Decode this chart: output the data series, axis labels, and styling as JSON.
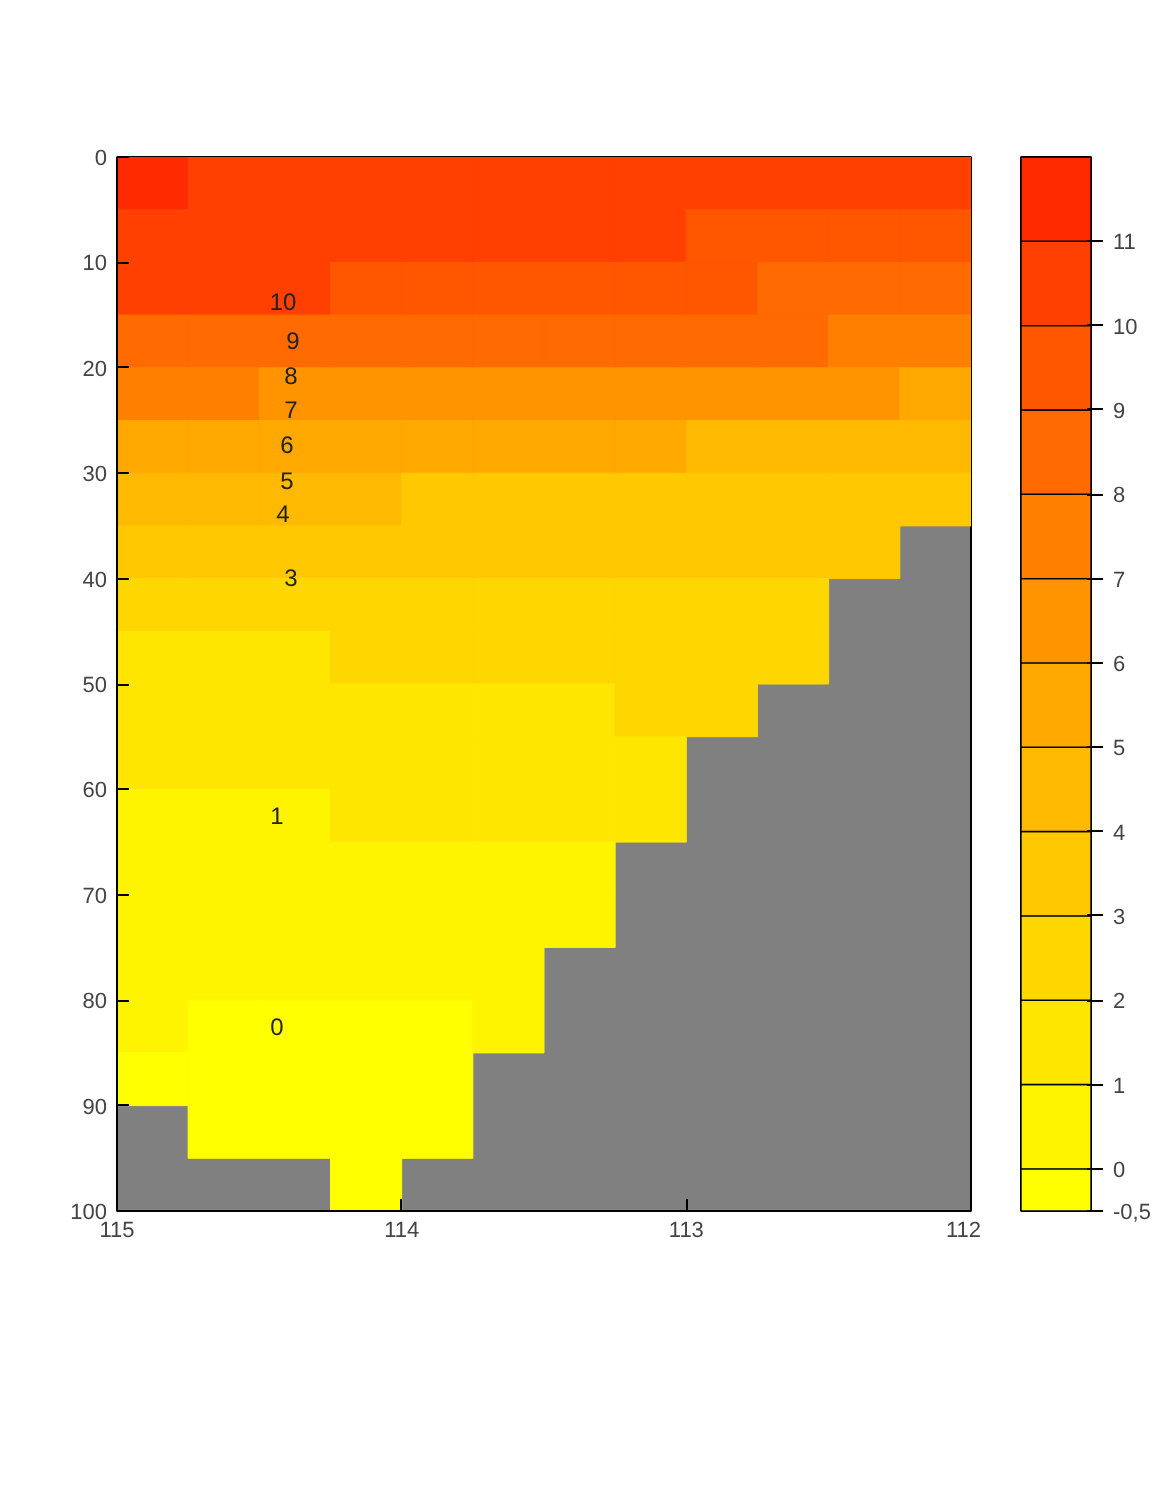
{
  "chart_data": {
    "type": "heatmap",
    "x": [
      114.875,
      114.625,
      114.375,
      114.125,
      113.875,
      113.625,
      113.375,
      113.125,
      112.875,
      112.625,
      112.375,
      112.125
    ],
    "y": [
      2.5,
      7.5,
      12.5,
      17.5,
      22.5,
      27.5,
      32.5,
      37.5,
      42.5,
      47.5,
      52.5,
      57.5,
      62.5,
      67.5,
      72.5,
      77.5,
      82.5,
      87.5,
      92.5,
      97.5
    ],
    "cells": [
      [
        11.5,
        10.5,
        10.5,
        10.5,
        10.5,
        10.5,
        10.5,
        10.5,
        10.5,
        10.5,
        10.5,
        10.5
      ],
      [
        10.5,
        10.5,
        10.5,
        10.5,
        10.5,
        10.5,
        10.5,
        10.5,
        9.5,
        9.5,
        9.5,
        9.5
      ],
      [
        10.5,
        10.5,
        10.5,
        9.5,
        9.5,
        9.5,
        9.5,
        9.5,
        9.5,
        8.5,
        8.5,
        8.5
      ],
      [
        8.5,
        8.5,
        8.5,
        8.5,
        8.5,
        8.5,
        8.5,
        8.5,
        8.5,
        8.5,
        7.5,
        7.5
      ],
      [
        7.5,
        7.5,
        6.5,
        6.5,
        6.5,
        6.5,
        6.5,
        6.5,
        6.5,
        6.5,
        6.5,
        5.5
      ],
      [
        5.5,
        5.5,
        5.5,
        5.5,
        5.5,
        5.5,
        5.5,
        5.5,
        4.5,
        4.5,
        4.5,
        4.5
      ],
      [
        4.5,
        4.5,
        4.5,
        4.5,
        3.5,
        3.5,
        3.5,
        3.5,
        3.5,
        3.5,
        3.5,
        3.5
      ],
      [
        3.5,
        3.5,
        3.5,
        3.5,
        3.5,
        3.5,
        3.5,
        3.5,
        3.5,
        3.5,
        3.5,
        null
      ],
      [
        2.5,
        2.5,
        2.5,
        2.5,
        2.5,
        2.5,
        2.5,
        2.5,
        2.5,
        2.5,
        null,
        null
      ],
      [
        1.5,
        1.5,
        1.5,
        2.5,
        2.5,
        2.5,
        2.5,
        2.5,
        2.5,
        2.5,
        null,
        null
      ],
      [
        1.5,
        1.5,
        1.5,
        1.5,
        1.5,
        1.5,
        1.5,
        2.5,
        2.5,
        null,
        null,
        null
      ],
      [
        1.5,
        1.5,
        1.5,
        1.5,
        1.5,
        1.5,
        1.5,
        1.5,
        null,
        null,
        null,
        null
      ],
      [
        0.5,
        0.5,
        0.5,
        1.5,
        1.5,
        1.5,
        1.5,
        1.5,
        null,
        null,
        null,
        null
      ],
      [
        0.5,
        0.5,
        0.5,
        0.5,
        0.5,
        0.5,
        0.5,
        null,
        null,
        null,
        null,
        null
      ],
      [
        0.5,
        0.5,
        0.5,
        0.5,
        0.5,
        0.5,
        0.5,
        null,
        null,
        null,
        null,
        null
      ],
      [
        0.5,
        0.5,
        0.5,
        0.5,
        0.5,
        0.5,
        null,
        null,
        null,
        null,
        null,
        null
      ],
      [
        0.5,
        -0.25,
        -0.25,
        -0.25,
        -0.25,
        0.5,
        null,
        null,
        null,
        null,
        null,
        null
      ],
      [
        -0.25,
        -0.25,
        -0.25,
        -0.25,
        -0.25,
        null,
        null,
        null,
        null,
        null,
        null,
        null
      ],
      [
        null,
        -0.25,
        -0.25,
        -0.25,
        -0.25,
        null,
        null,
        null,
        null,
        null,
        null,
        null
      ],
      [
        null,
        null,
        null,
        -0.25,
        null,
        null,
        null,
        null,
        null,
        null,
        null,
        null
      ]
    ],
    "xlim": [
      115,
      112
    ],
    "xticks": [
      115,
      114,
      113,
      112
    ],
    "ylim": [
      100,
      0
    ],
    "yticks": [
      0,
      10,
      20,
      30,
      40,
      50,
      60,
      70,
      80,
      90,
      100
    ],
    "clim": [
      -0.5,
      12
    ],
    "cticks": [
      {
        "value": -0.5,
        "label": "-0,5"
      },
      0,
      1,
      2,
      3,
      4,
      5,
      6,
      7,
      8,
      9,
      10,
      11
    ],
    "colors": [
      "#ffff00",
      "#fff400",
      "#ffe600",
      "#ffd700",
      "#ffc800",
      "#ffb900",
      "#ffa800",
      "#ff9400",
      "#ff8000",
      "#ff6b00",
      "#ff5600",
      "#ff4000",
      "#ff2a00"
    ],
    "annotations": [
      "10",
      "9",
      "8",
      "7",
      "6",
      "5",
      "4",
      "3",
      "1",
      "0"
    ],
    "grid": false
  }
}
